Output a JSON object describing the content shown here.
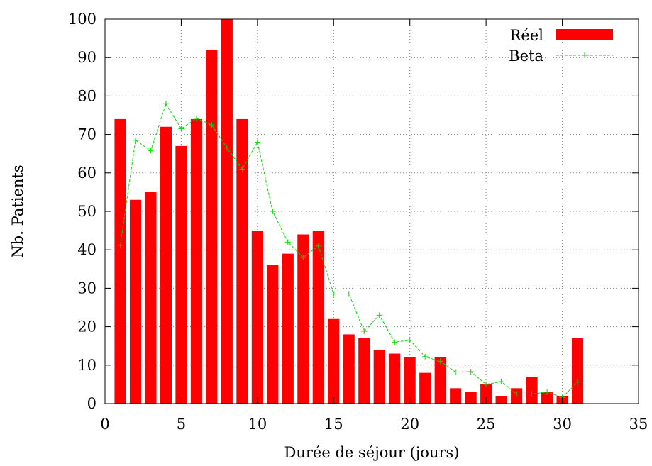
{
  "chart_data": {
    "type": "bar",
    "xlabel": "Durée de séjour (jours)",
    "ylabel": "Nb. Patients",
    "xlim": [
      0,
      35
    ],
    "ylim": [
      0,
      100
    ],
    "x_ticks": [
      0,
      5,
      10,
      15,
      20,
      25,
      30,
      35
    ],
    "y_ticks": [
      0,
      10,
      20,
      30,
      40,
      50,
      60,
      70,
      80,
      90,
      100
    ],
    "grid": true,
    "legend_position": "top-right",
    "series": [
      {
        "name": "Réel",
        "kind": "bar",
        "color": "#ff0000",
        "x": [
          1,
          2,
          3,
          4,
          5,
          6,
          7,
          8,
          9,
          10,
          11,
          12,
          13,
          14,
          15,
          16,
          17,
          18,
          19,
          20,
          21,
          22,
          23,
          24,
          25,
          26,
          27,
          28,
          29,
          30,
          31
        ],
        "values": [
          74,
          53,
          55,
          72,
          67,
          74,
          92,
          100,
          74,
          45,
          36,
          39,
          44,
          45,
          22,
          18,
          17,
          14,
          13,
          12,
          8,
          12,
          4,
          3,
          5,
          2,
          4,
          7,
          3,
          2,
          17
        ]
      },
      {
        "name": "Beta",
        "kind": "line",
        "color": "#00dd00",
        "marker": "+",
        "x": [
          1,
          2,
          3,
          4,
          5,
          6,
          7,
          8,
          9,
          10,
          11,
          12,
          13,
          14,
          15,
          16,
          17,
          18,
          19,
          20,
          21,
          22,
          23,
          24,
          25,
          26,
          27,
          28,
          29,
          30,
          31
        ],
        "values": [
          41.2,
          68.5,
          65.8,
          78,
          71.5,
          74.2,
          72.5,
          66.5,
          61,
          68,
          50,
          42,
          38,
          41,
          28.5,
          28.5,
          18.8,
          23,
          16,
          16.5,
          12.2,
          11,
          8.2,
          8.3,
          5,
          5.7,
          2.5,
          2.5,
          3,
          1.6,
          5.6
        ]
      }
    ]
  }
}
